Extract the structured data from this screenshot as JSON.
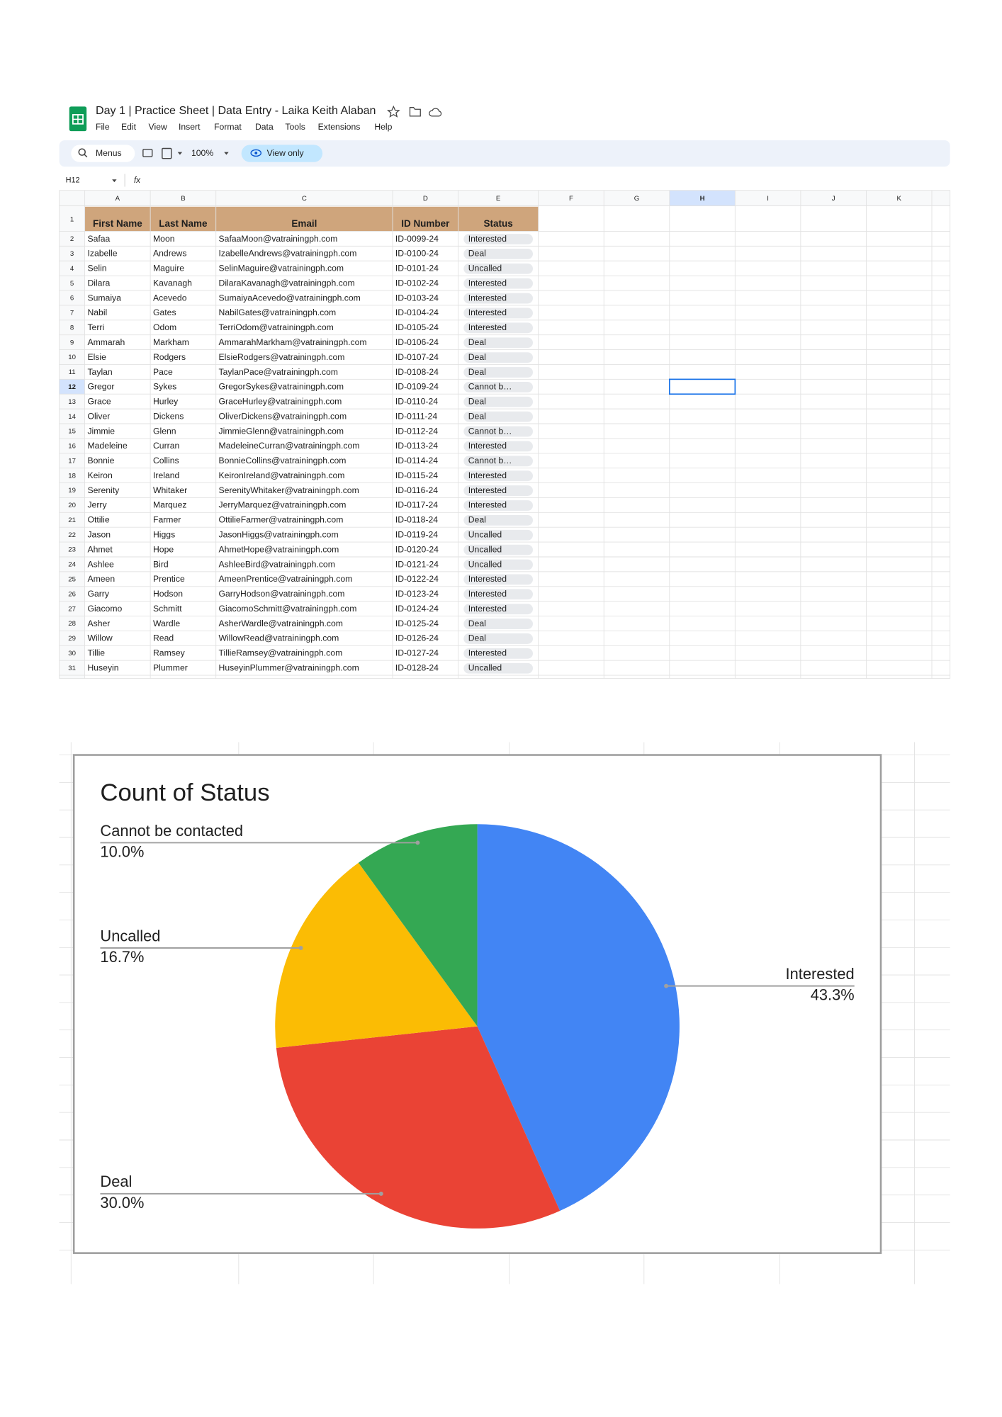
{
  "header": {
    "title": "Day 1 | Practice Sheet | Data Entry - Laika Keith Alaban",
    "menus": [
      "File",
      "Edit",
      "View",
      "Insert",
      "Format",
      "Data",
      "Tools",
      "Extensions",
      "Help"
    ]
  },
  "toolbar": {
    "search": "Menus",
    "zoom": "100%",
    "mode": "View only"
  },
  "formula_bar": {
    "cell": "H12",
    "fx": "fx"
  },
  "sheet": {
    "columns": [
      "A",
      "B",
      "C",
      "D",
      "E",
      "F",
      "G",
      "H",
      "I",
      "J",
      "K"
    ],
    "row_numbers": [
      1,
      2,
      3,
      4,
      5,
      6,
      7,
      8,
      9,
      10,
      11,
      12,
      13,
      14,
      15,
      16,
      17,
      18,
      19,
      20,
      21,
      22,
      23,
      24,
      25,
      26,
      27,
      28,
      29,
      30,
      31
    ],
    "table": {
      "header": [
        "First Name",
        "Last Name",
        "Email",
        "ID Number",
        "Status"
      ],
      "rows": [
        [
          "Safaa",
          "Moon",
          "SafaaMoon@vatrainingph.com",
          "ID-0099-24",
          "Interested"
        ],
        [
          "Izabelle",
          "Andrews",
          "IzabelleAndrews@vatrainingph.com",
          "ID-0100-24",
          "Deal"
        ],
        [
          "Selin",
          "Maguire",
          "SelinMaguire@vatrainingph.com",
          "ID-0101-24",
          "Uncalled"
        ],
        [
          "Dilara",
          "Kavanagh",
          "DilaraKavanagh@vatrainingph.com",
          "ID-0102-24",
          "Interested"
        ],
        [
          "Sumaiya",
          "Acevedo",
          "SumaiyaAcevedo@vatrainingph.com",
          "ID-0103-24",
          "Interested"
        ],
        [
          "Nabil",
          "Gates",
          "NabilGates@vatrainingph.com",
          "ID-0104-24",
          "Interested"
        ],
        [
          "Terri",
          "Odom",
          "TerriOdom@vatrainingph.com",
          "ID-0105-24",
          "Interested"
        ],
        [
          "Ammarah",
          "Markham",
          "AmmarahMarkham@vatrainingph.com",
          "ID-0106-24",
          "Deal"
        ],
        [
          "Elsie",
          "Rodgers",
          "ElsieRodgers@vatrainingph.com",
          "ID-0107-24",
          "Deal"
        ],
        [
          "Taylan",
          "Pace",
          "TaylanPace@vatrainingph.com",
          "ID-0108-24",
          "Deal"
        ],
        [
          "Gregor",
          "Sykes",
          "GregorSykes@vatrainingph.com",
          "ID-0109-24",
          "Cannot b…"
        ],
        [
          "Grace",
          "Hurley",
          "GraceHurley@vatrainingph.com",
          "ID-0110-24",
          "Deal"
        ],
        [
          "Oliver",
          "Dickens",
          "OliverDickens@vatrainingph.com",
          "ID-0111-24",
          "Deal"
        ],
        [
          "Jimmie",
          "Glenn",
          "JimmieGlenn@vatrainingph.com",
          "ID-0112-24",
          "Cannot b…"
        ],
        [
          "Madeleine",
          "Curran",
          "MadeleineCurran@vatrainingph.com",
          "ID-0113-24",
          "Interested"
        ],
        [
          "Bonnie",
          "Collins",
          "BonnieCollins@vatrainingph.com",
          "ID-0114-24",
          "Cannot b…"
        ],
        [
          "Keiron",
          "Ireland",
          "KeironIreland@vatrainingph.com",
          "ID-0115-24",
          "Interested"
        ],
        [
          "Serenity",
          "Whitaker",
          "SerenityWhitaker@vatrainingph.com",
          "ID-0116-24",
          "Interested"
        ],
        [
          "Jerry",
          "Marquez",
          "JerryMarquez@vatrainingph.com",
          "ID-0117-24",
          "Interested"
        ],
        [
          "Ottilie",
          "Farmer",
          "OttilieFarmer@vatrainingph.com",
          "ID-0118-24",
          "Deal"
        ],
        [
          "Jason",
          "Higgs",
          "JasonHiggs@vatrainingph.com",
          "ID-0119-24",
          "Uncalled"
        ],
        [
          "Ahmet",
          "Hope",
          "AhmetHope@vatrainingph.com",
          "ID-0120-24",
          "Uncalled"
        ],
        [
          "Ashlee",
          "Bird",
          "AshleeBird@vatrainingph.com",
          "ID-0121-24",
          "Uncalled"
        ],
        [
          "Ameen",
          "Prentice",
          "AmeenPrentice@vatrainingph.com",
          "ID-0122-24",
          "Interested"
        ],
        [
          "Garry",
          "Hodson",
          "GarryHodson@vatrainingph.com",
          "ID-0123-24",
          "Interested"
        ],
        [
          "Giacomo",
          "Schmitt",
          "GiacomoSchmitt@vatrainingph.com",
          "ID-0124-24",
          "Interested"
        ],
        [
          "Asher",
          "Wardle",
          "AsherWardle@vatrainingph.com",
          "ID-0125-24",
          "Deal"
        ],
        [
          "Willow",
          "Read",
          "WillowRead@vatrainingph.com",
          "ID-0126-24",
          "Deal"
        ],
        [
          "Tillie",
          "Ramsey",
          "TillieRamsey@vatrainingph.com",
          "ID-0127-24",
          "Interested"
        ],
        [
          "Huseyin",
          "Plummer",
          "HuseyinPlummer@vatrainingph.com",
          "ID-0128-24",
          "Uncalled"
        ]
      ]
    }
  },
  "chart_data": {
    "type": "pie",
    "title": "Count of Status",
    "categories": [
      "Interested",
      "Deal",
      "Uncalled",
      "Cannot be contacted"
    ],
    "values": [
      43.3,
      30.0,
      16.7,
      10.0
    ],
    "value_labels": [
      "43.3%",
      "30.0%",
      "16.7%",
      "10.0%"
    ],
    "colors": [
      "#4285f4",
      "#ea4335",
      "#fbbc04",
      "#34a853"
    ]
  }
}
